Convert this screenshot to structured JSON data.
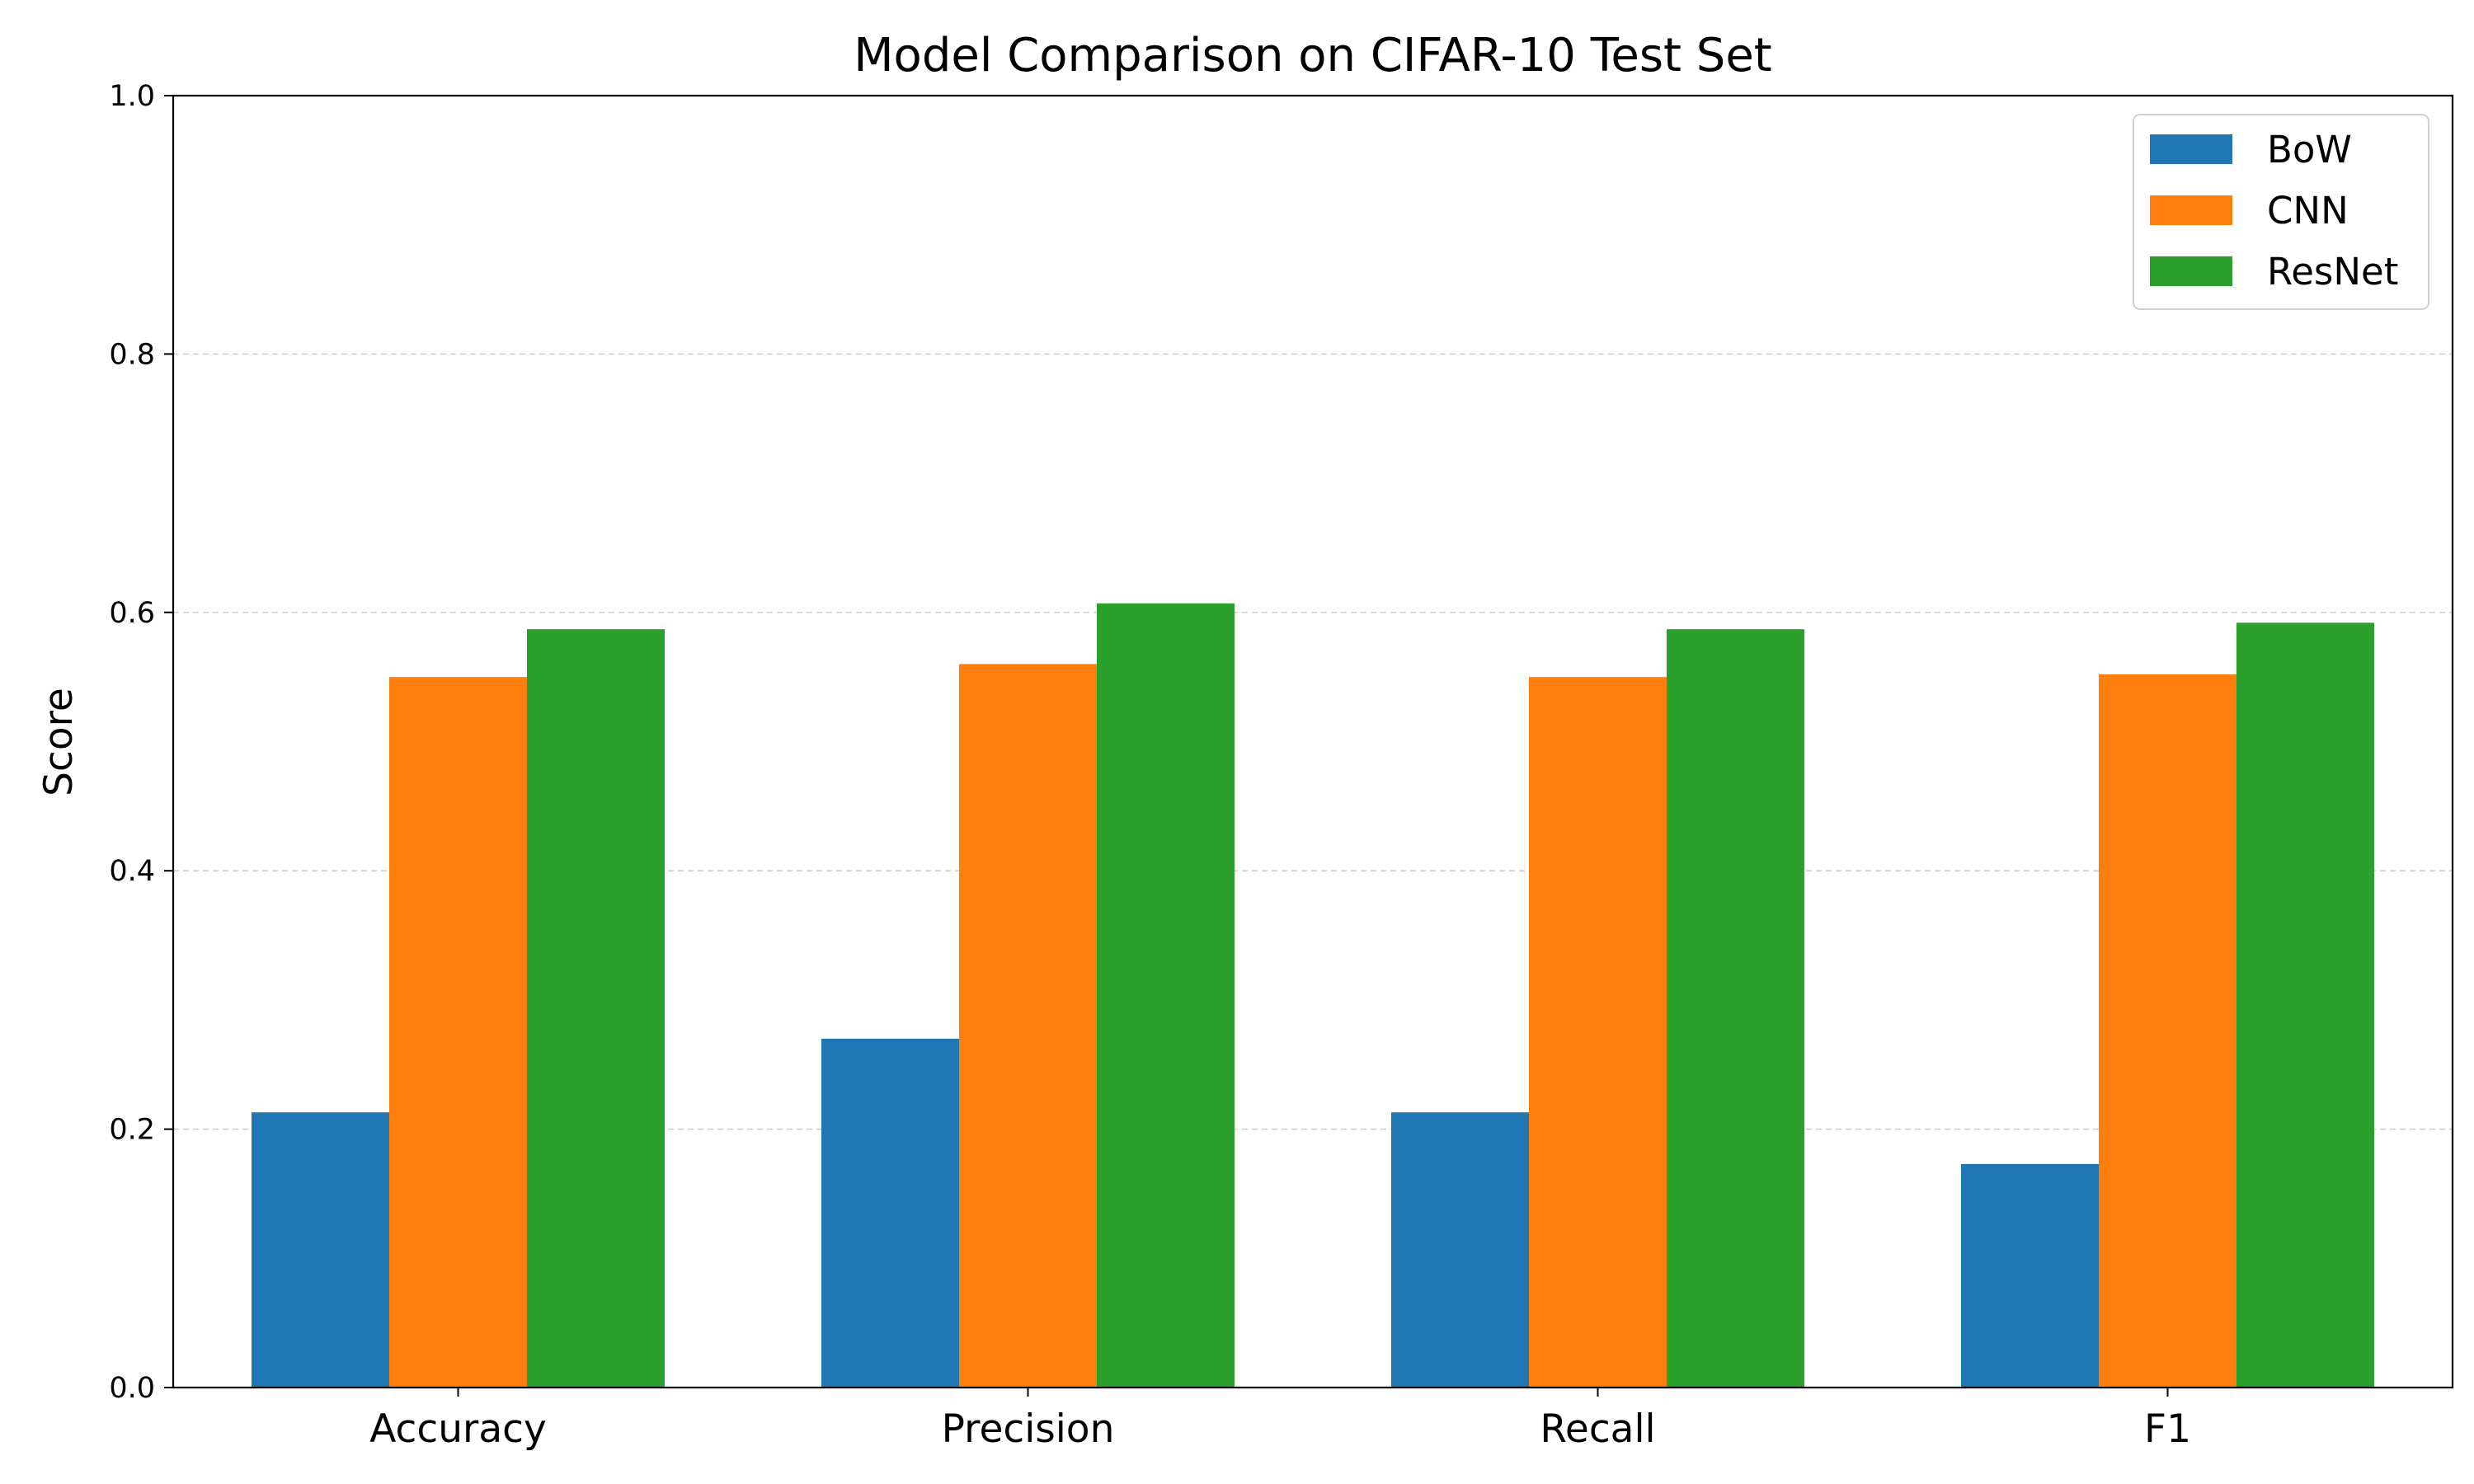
{
  "chart_data": {
    "type": "bar",
    "title": "Model Comparison on CIFAR-10 Test Set",
    "xlabel": "",
    "ylabel": "Score",
    "ylim": [
      0,
      1.0
    ],
    "yticks": [
      "0.0",
      "0.2",
      "0.4",
      "0.6",
      "0.8",
      "1.0"
    ],
    "grid": "horizontal dashed",
    "legend_position": "top-right",
    "categories": [
      "Accuracy",
      "Precision",
      "Recall",
      "F1"
    ],
    "series": [
      {
        "name": "BoW",
        "color": "#1f77b4",
        "values": [
          0.213,
          0.27,
          0.213,
          0.173
        ]
      },
      {
        "name": "CNN",
        "color": "#ff7f0e",
        "values": [
          0.55,
          0.56,
          0.55,
          0.552
        ]
      },
      {
        "name": "ResNet",
        "color": "#2ca02c",
        "values": [
          0.587,
          0.607,
          0.587,
          0.592
        ]
      }
    ]
  }
}
